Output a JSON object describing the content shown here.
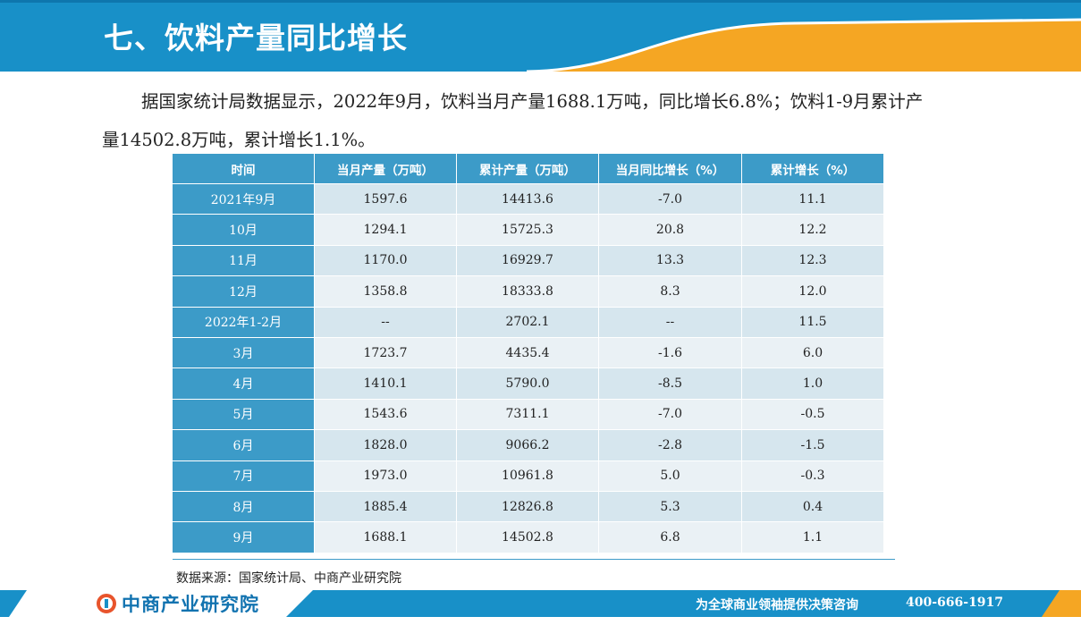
{
  "header": {
    "title": "七、饮料产量同比增长"
  },
  "intro": {
    "line1": "据国家统计局数据显示，2022年9月，饮料当月产量1688.1万吨，同比增长6.8%；饮料1-9月累计产",
    "line2": "量14502.8万吨，累计增长1.1%。"
  },
  "table": {
    "headers": [
      "时间",
      "当月产量（万吨）",
      "累计产量（万吨）",
      "当月同比增长（%）",
      "累计增长（%）"
    ],
    "rows": [
      [
        "2021年9月",
        "1597.6",
        "14413.6",
        "-7.0",
        "11.1"
      ],
      [
        "10月",
        "1294.1",
        "15725.3",
        "20.8",
        "12.2"
      ],
      [
        "11月",
        "1170.0",
        "16929.7",
        "13.3",
        "12.3"
      ],
      [
        "12月",
        "1358.8",
        "18333.8",
        "8.3",
        "12.0"
      ],
      [
        "2022年1-2月",
        "--",
        "2702.1",
        "--",
        "11.5"
      ],
      [
        "3月",
        "1723.7",
        "4435.4",
        "-1.6",
        "6.0"
      ],
      [
        "4月",
        "1410.1",
        "5790.0",
        "-8.5",
        "1.0"
      ],
      [
        "5月",
        "1543.6",
        "7311.1",
        "-7.0",
        "-0.5"
      ],
      [
        "6月",
        "1828.0",
        "9066.2",
        "-2.8",
        "-1.5"
      ],
      [
        "7月",
        "1973.0",
        "10961.8",
        "5.0",
        "-0.3"
      ],
      [
        "8月",
        "1885.4",
        "12826.8",
        "5.3",
        "0.4"
      ],
      [
        "9月",
        "1688.1",
        "14502.8",
        "6.8",
        "1.1"
      ]
    ]
  },
  "source": "数据来源：国家统计局、中商产业研究院",
  "footer": {
    "logo_text": "中商产业研究院",
    "slogan": "为全球商业领袖提供决策咨询",
    "phone": "400-666-1917"
  },
  "colors": {
    "header_blue": "#1890c8",
    "accent_orange": "#f5a623",
    "table_header": "#3c9bc8"
  }
}
